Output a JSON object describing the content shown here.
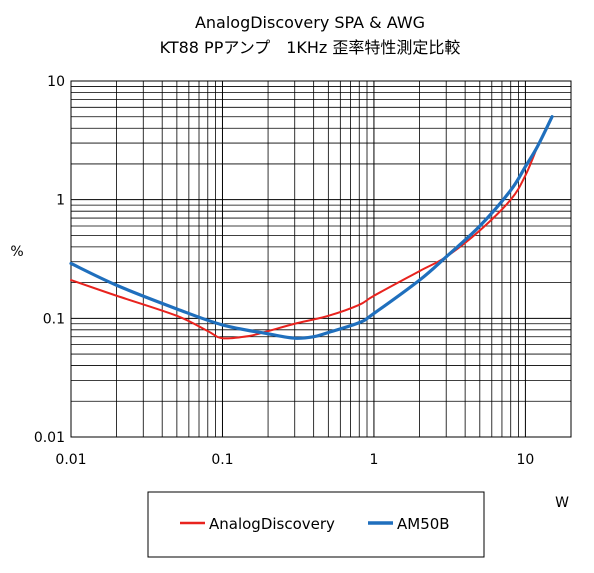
{
  "chart_data": {
    "type": "line",
    "title_lines": [
      "AnalogDiscovery SPA & AWG",
      "KT88 PPアンプ　1KHz 歪率特性測定比較"
    ],
    "xlabel": "W",
    "ylabel": "%",
    "x_scale": "log",
    "y_scale": "log",
    "xlim": [
      0.01,
      20
    ],
    "ylim": [
      0.01,
      10
    ],
    "x_ticks": [
      0.01,
      0.1,
      1,
      10
    ],
    "x_tick_labels": [
      "0.01",
      "0.1",
      "1",
      "10"
    ],
    "y_ticks": [
      0.01,
      0.1,
      1,
      10
    ],
    "y_tick_labels": [
      "0.01",
      "0.1",
      "1",
      "10"
    ],
    "grid": true,
    "legend_position": "bottom",
    "series": [
      {
        "name": "AnalogDiscovery",
        "color": "#e8231e",
        "x": [
          0.01,
          0.02,
          0.05,
          0.08,
          0.1,
          0.15,
          0.2,
          0.3,
          0.5,
          0.8,
          1,
          2,
          3,
          5,
          8,
          10,
          12
        ],
        "y": [
          0.21,
          0.155,
          0.105,
          0.078,
          0.068,
          0.071,
          0.078,
          0.09,
          0.105,
          0.13,
          0.155,
          0.25,
          0.33,
          0.55,
          1.0,
          1.6,
          2.8
        ]
      },
      {
        "name": "AM50B",
        "color": "#1f6fbd",
        "x": [
          0.01,
          0.02,
          0.05,
          0.1,
          0.2,
          0.3,
          0.4,
          0.5,
          0.8,
          1,
          2,
          3,
          5,
          8,
          10,
          12,
          15
        ],
        "y": [
          0.29,
          0.19,
          0.12,
          0.088,
          0.074,
          0.068,
          0.07,
          0.076,
          0.092,
          0.11,
          0.21,
          0.33,
          0.6,
          1.2,
          1.9,
          2.8,
          5.0
        ]
      }
    ]
  }
}
